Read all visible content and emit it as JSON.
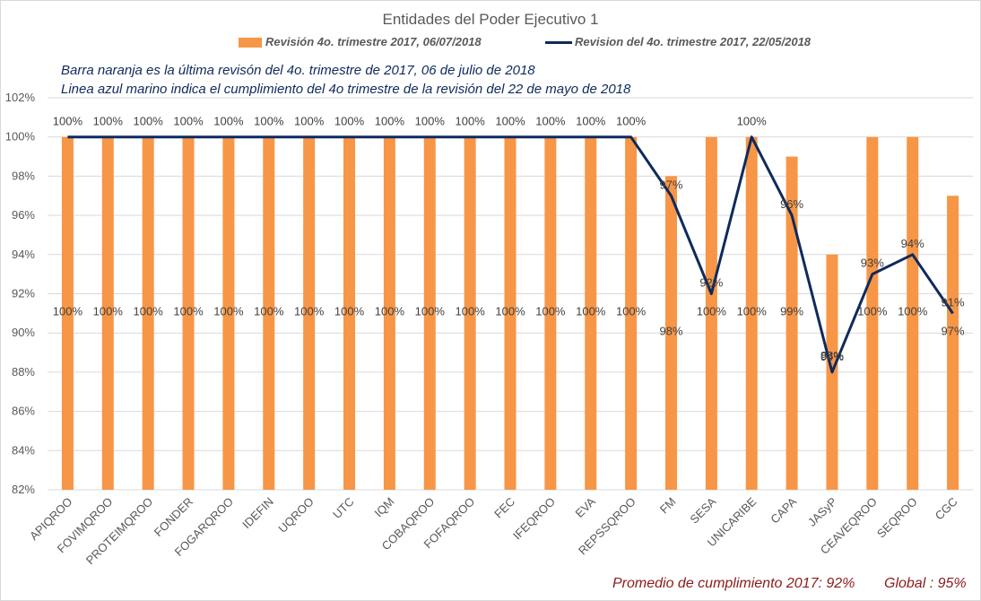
{
  "chart_data": {
    "type": "bar",
    "title": "Entidades del Poder Ejecutivo 1",
    "categories": [
      "APIQROO",
      "FOVIMQROO",
      "PROTEIMQROO",
      "FONDER",
      "FOGARQROO",
      "IDEFIN",
      "UQROO",
      "UTC",
      "IQM",
      "COBAQROO",
      "FOFAQROO",
      "FEC",
      "IFEQROO",
      "EVA",
      "REPSSQROO",
      "FM",
      "SESA",
      "UNICARIBE",
      "CAPA",
      "JASyP",
      "CEAVEQROO",
      "SEQROO",
      "CGC"
    ],
    "series": [
      {
        "name": "Revisión 4o. trimestre 2017, 06/07/2018",
        "kind": "bar",
        "color": "#f79646",
        "values": [
          100,
          100,
          100,
          100,
          100,
          100,
          100,
          100,
          100,
          100,
          100,
          100,
          100,
          100,
          100,
          98,
          100,
          100,
          99,
          94,
          100,
          100,
          97
        ],
        "value_labels": [
          "100%",
          "100%",
          "100%",
          "100%",
          "100%",
          "100%",
          "100%",
          "100%",
          "100%",
          "100%",
          "100%",
          "100%",
          "100%",
          "100%",
          "100%",
          "98%",
          "100%",
          "100%",
          "99%",
          "94%",
          "100%",
          "100%",
          "97%"
        ]
      },
      {
        "name": "Revision del 4o. trimestre 2017, 22/05/2018",
        "kind": "line",
        "color": "#0f2a5c",
        "values": [
          100,
          100,
          100,
          100,
          100,
          100,
          100,
          100,
          100,
          100,
          100,
          100,
          100,
          100,
          100,
          97,
          92,
          100,
          96,
          88,
          93,
          94,
          91
        ],
        "value_labels": [
          "100%",
          "100%",
          "100%",
          "100%",
          "100%",
          "100%",
          "100%",
          "100%",
          "100%",
          "100%",
          "100%",
          "100%",
          "100%",
          "100%",
          "100%",
          "97%",
          "92%",
          "100%",
          "96%",
          "88%",
          "93%",
          "94%",
          "91%"
        ]
      }
    ],
    "ylim": [
      82,
      102
    ],
    "yticks": [
      82,
      84,
      86,
      88,
      90,
      92,
      94,
      96,
      98,
      100,
      102
    ],
    "ytick_suffix": "%",
    "xlabel": "",
    "ylabel": "",
    "grid": true,
    "legend_position": "top"
  },
  "annotations": {
    "note_line1": "Barra naranja es la última revisón del 4o. trimestre de 2017, 06 de julio de 2018",
    "note_line2": "Linea azul marino indica el cumplimiento del 4o trimestre de la revisión del 22 de mayo de 2018",
    "footer_average": "Promedio de cumplimiento 2017: 92%",
    "footer_global": "Global : 95%"
  }
}
